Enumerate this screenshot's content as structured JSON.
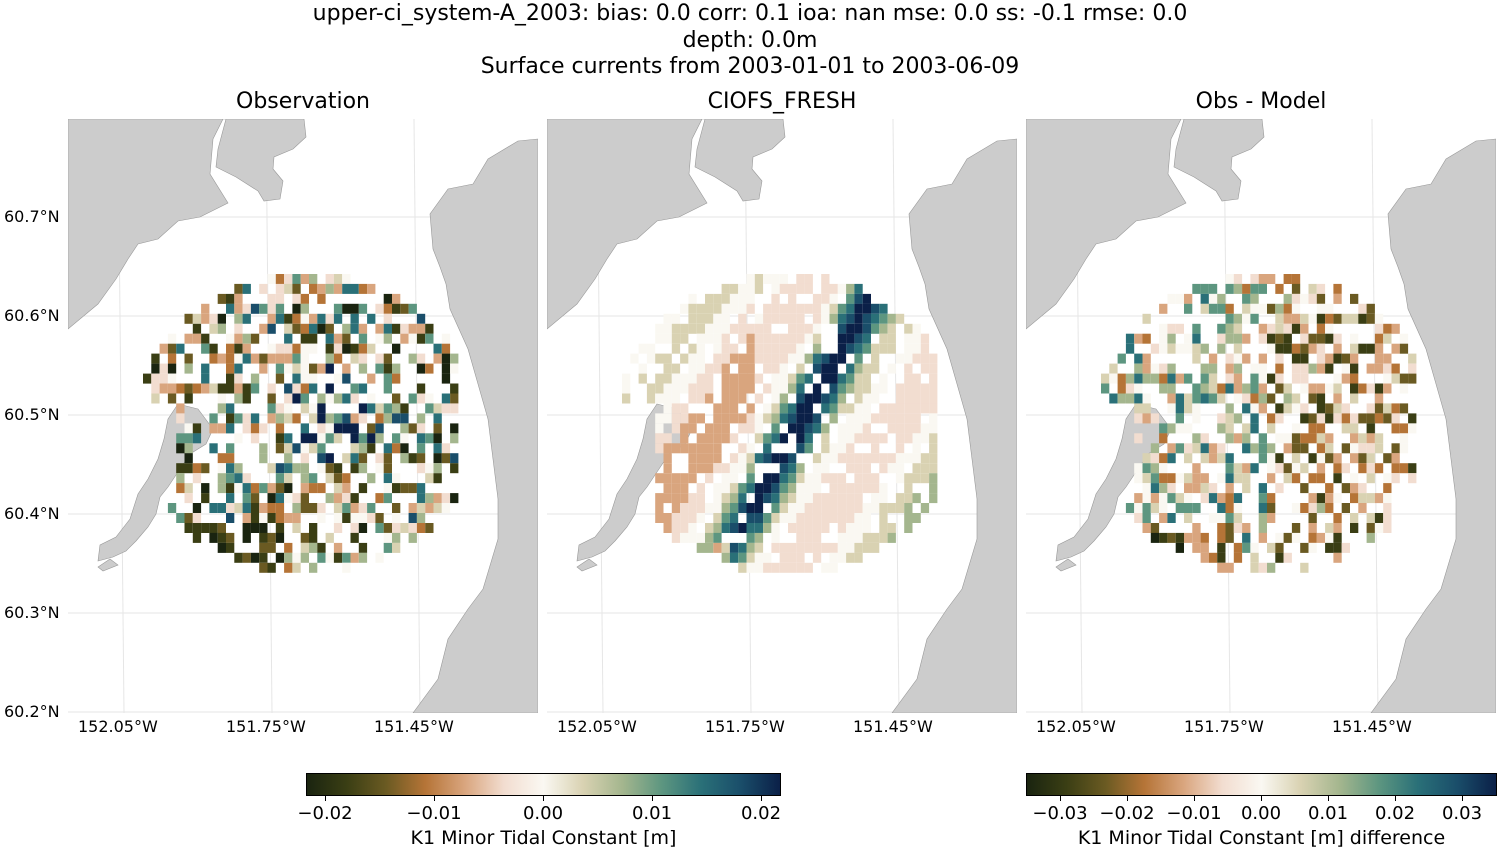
{
  "figure": {
    "title_line1": "upper-ci_system-A_2003: bias: 0.0  corr: 0.1  ioa: nan  mse: 0.0  ss: -0.1  rmse: 0.0",
    "title_line2": "depth: 0.0m",
    "title_line3": "Surface currents from 2003-01-01 to 2003-06-09"
  },
  "panels": [
    {
      "title": "Observation"
    },
    {
      "title": "CIOFS_FRESH"
    },
    {
      "title": "Obs - Model"
    }
  ],
  "axes": {
    "y_ticks": [
      "60.7°N",
      "60.6°N",
      "60.5°N",
      "60.4°N",
      "60.3°N",
      "60.2°N"
    ],
    "x_ticks": [
      "152.05°W",
      "151.75°W",
      "151.45°W"
    ]
  },
  "colorbars": [
    {
      "ticks": [
        "−0.02",
        "−0.01",
        "0.00",
        "0.01",
        "0.02"
      ],
      "label": "K1 Minor Tidal Constant [m]"
    },
    {
      "ticks": [
        "−0.03",
        "−0.02",
        "−0.01",
        "0.00",
        "0.01",
        "0.02",
        "0.03"
      ],
      "label": "K1 Minor Tidal Constant [m] difference"
    }
  ],
  "colors": {
    "land": "#cccccc",
    "grid": "#e6e6e6",
    "cmap": [
      "#1a2410",
      "#3a3e14",
      "#6a5a22",
      "#b57437",
      "#d9a57e",
      "#f2ddd0",
      "#faf8f2",
      "#d9d2b2",
      "#a4b68e",
      "#5d9680",
      "#2a7078",
      "#1a4e6a",
      "#0b2048"
    ]
  },
  "chart_data": [
    {
      "type": "heatmap",
      "title": "Observation",
      "x_ticks": [
        "152.05°W",
        "151.75°W",
        "151.45°W"
      ],
      "y_ticks": [
        "60.7°N",
        "60.6°N",
        "60.5°N",
        "60.4°N",
        "60.3°N",
        "60.2°N"
      ],
      "ylim": [
        60.2,
        60.8
      ],
      "xlim": [
        -152.15,
        -151.2
      ],
      "color_range": [
        -0.022,
        0.022
      ],
      "colorbar_label": "K1 Minor Tidal Constant [m]"
    },
    {
      "type": "heatmap",
      "title": "CIOFS_FRESH",
      "ylim": [
        60.2,
        60.8
      ],
      "xlim": [
        -152.15,
        -151.2
      ],
      "color_range": [
        -0.022,
        0.022
      ],
      "colorbar_label": "K1 Minor Tidal Constant [m]"
    },
    {
      "type": "heatmap",
      "title": "Obs - Model",
      "ylim": [
        60.2,
        60.8
      ],
      "xlim": [
        -152.15,
        -151.2
      ],
      "color_range": [
        -0.035,
        0.035
      ],
      "colorbar_label": "K1 Minor Tidal Constant [m] difference"
    }
  ]
}
